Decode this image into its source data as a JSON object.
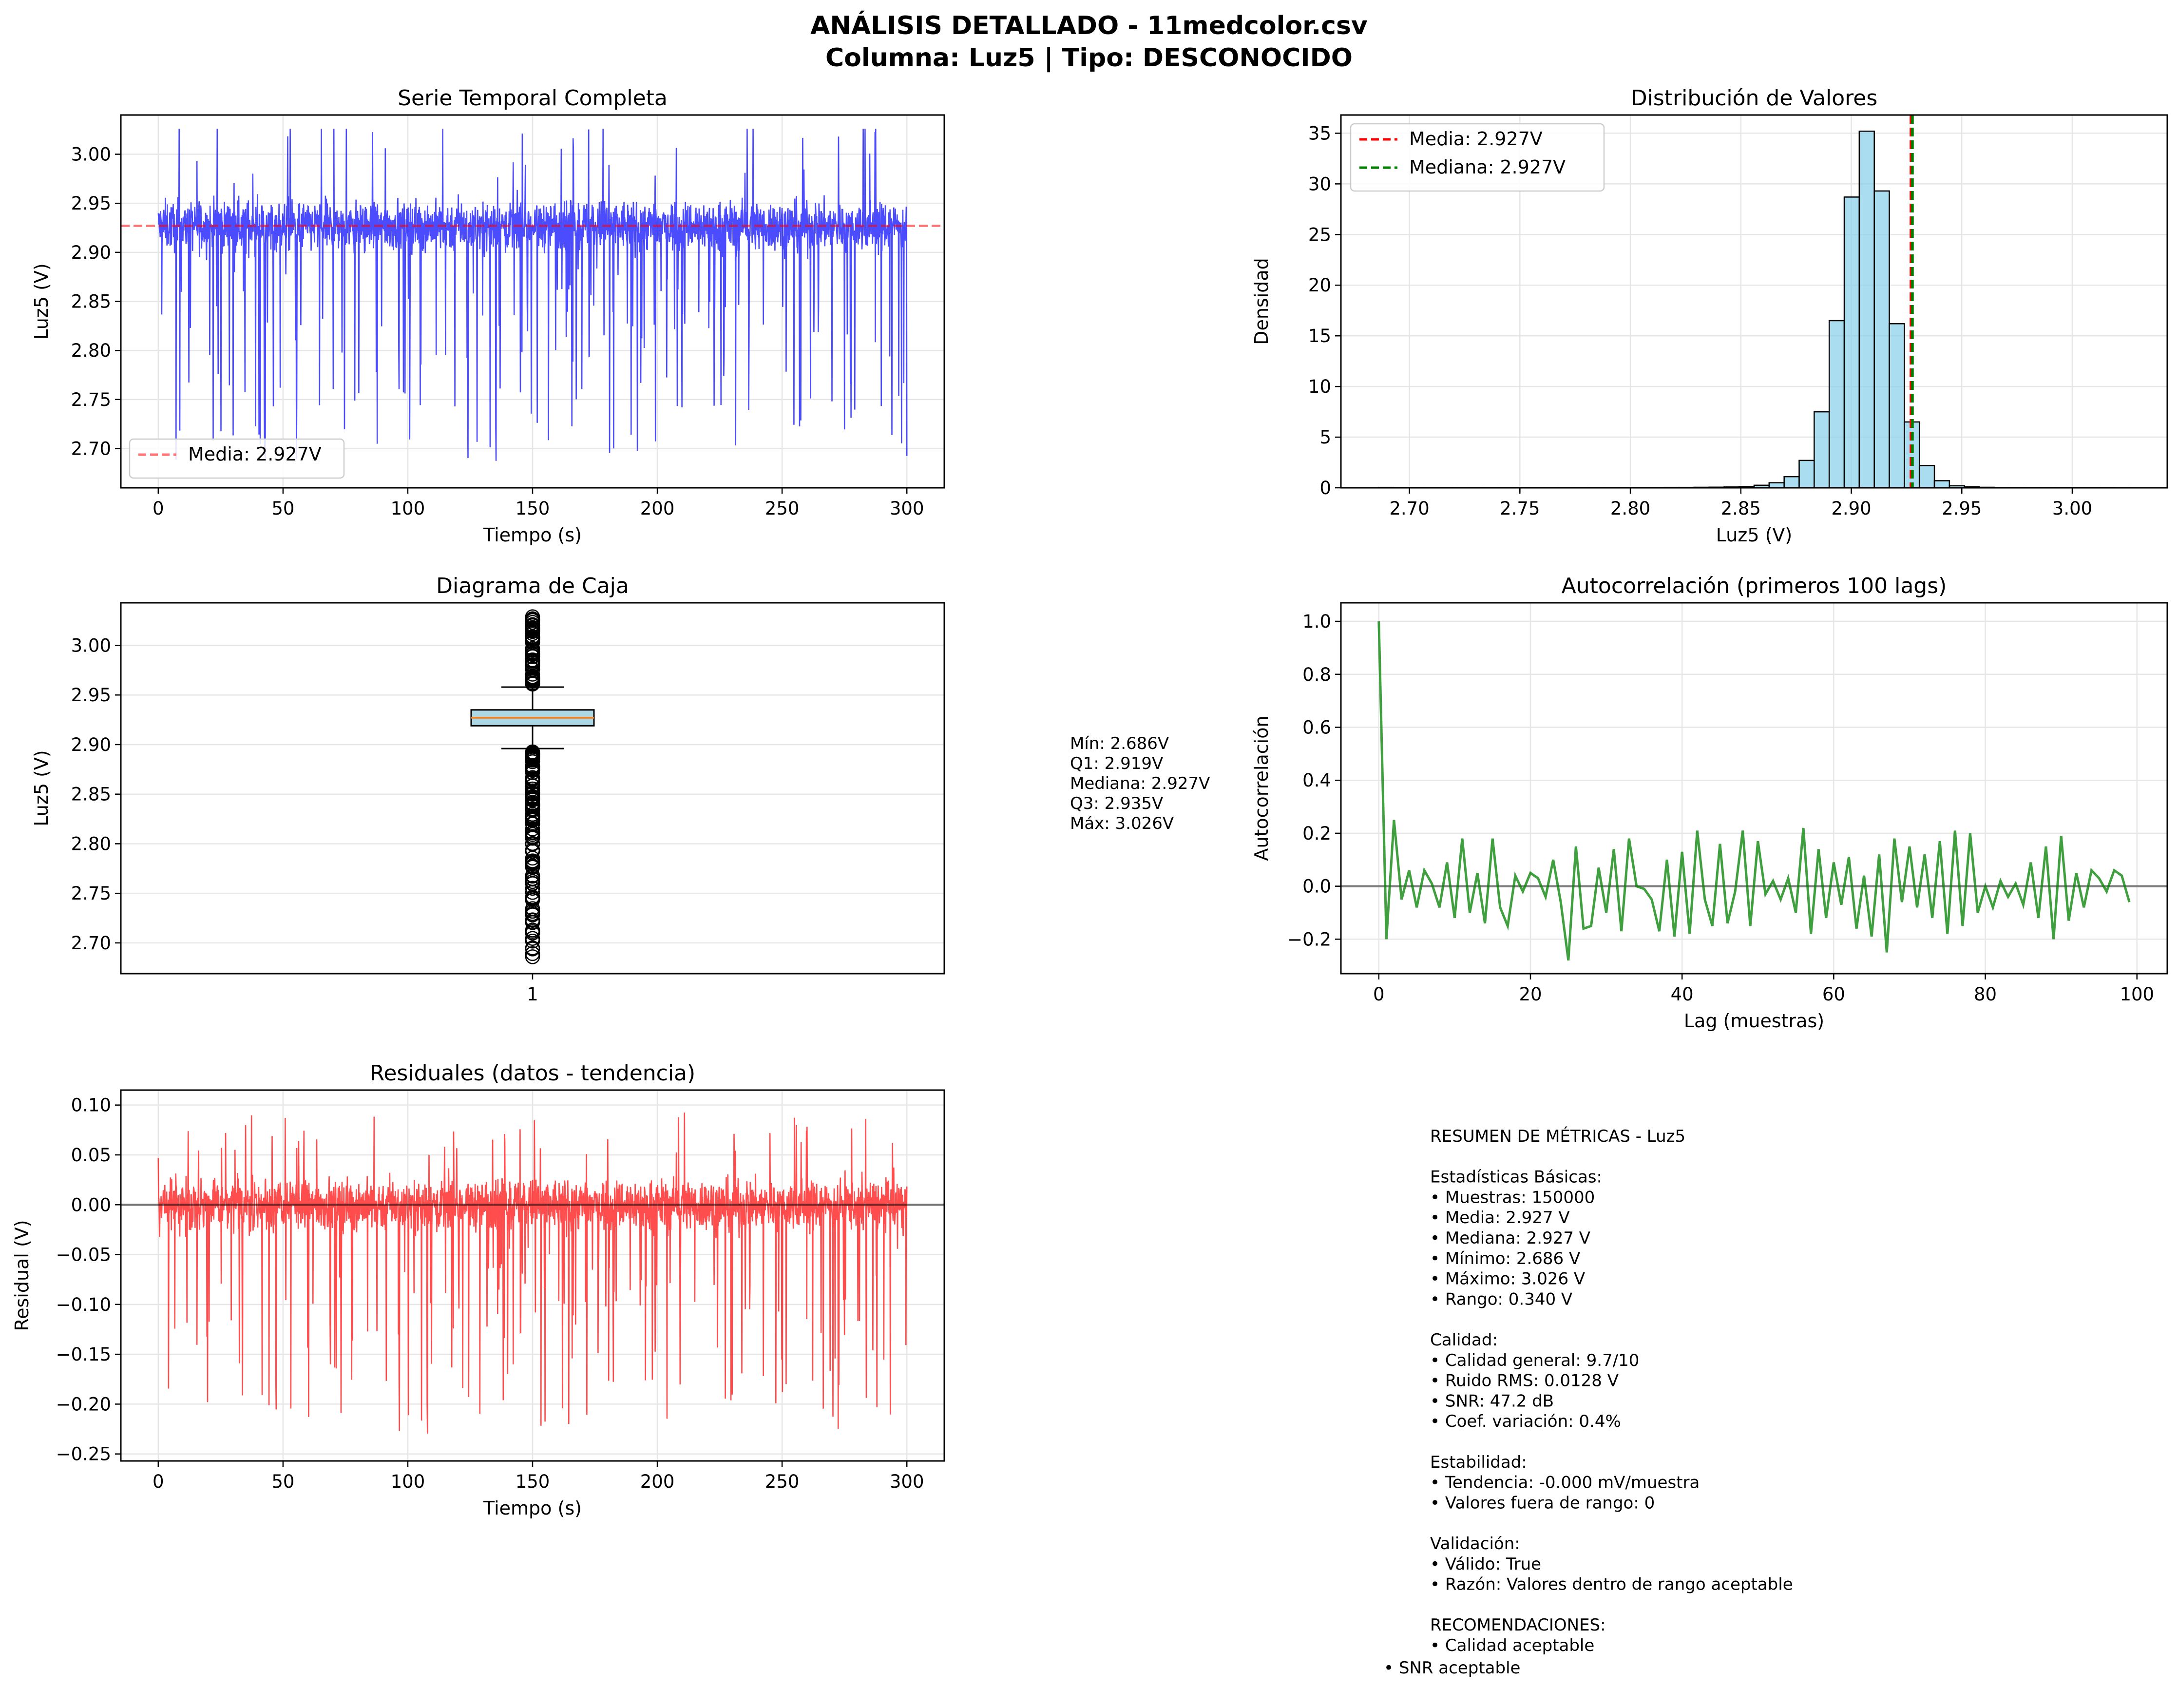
{
  "figure": {
    "title_line1": "ANÁLISIS DETALLADO - 11medcolor.csv",
    "title_line2": "Columna: Luz5 | Tipo: DESCONOCIDO"
  },
  "chart_data": [
    {
      "id": "timeseries",
      "type": "line",
      "title": "Serie Temporal Completa",
      "xlabel": "Tiempo (s)",
      "ylabel": "Luz5 (V)",
      "xlim": [
        -15,
        315
      ],
      "ylim": [
        2.66,
        3.04
      ],
      "xticks": [
        "0",
        "50",
        "100",
        "150",
        "200",
        "250",
        "300"
      ],
      "yticks": [
        "2.70",
        "2.75",
        "2.80",
        "2.85",
        "2.90",
        "2.95",
        "3.00"
      ],
      "series": [
        {
          "name": "Luz5",
          "color": "#0000ff",
          "description_of_data": "signal around 2.927 V, band 2.89–2.97 V, spikes between 2.686 and 3.026 V, 150000 samples over 0–300 s"
        },
        {
          "name": "Media: 2.927V",
          "color": "#ff0000",
          "style": "dashed",
          "y": 2.927
        }
      ],
      "legend": {
        "position": "lower-left",
        "entries": [
          "Media: 2.927V"
        ]
      },
      "grid": true
    },
    {
      "id": "histogram",
      "type": "bar",
      "title": "Distribución de Valores",
      "xlabel": "Luz5 (V)",
      "ylabel": "Densidad",
      "xlim": [
        2.669,
        3.043
      ],
      "ylim": [
        0,
        36.8
      ],
      "xticks": [
        "2.70",
        "2.75",
        "2.80",
        "2.85",
        "2.90",
        "2.95",
        "3.00"
      ],
      "yticks": [
        "0",
        "5",
        "10",
        "15",
        "20",
        "25",
        "30",
        "35"
      ],
      "bins_start": 2.686,
      "bin_width": 0.0068,
      "densities": [
        0.04,
        0.03,
        0.03,
        0.03,
        0.03,
        0.03,
        0.03,
        0.03,
        0.03,
        0.03,
        0.03,
        0.03,
        0.03,
        0.03,
        0.03,
        0.03,
        0.03,
        0.03,
        0.03,
        0.04,
        0.04,
        0.05,
        0.06,
        0.08,
        0.12,
        0.25,
        0.5,
        1.1,
        2.7,
        7.5,
        16.5,
        28.7,
        35.2,
        29.3,
        16.2,
        6.5,
        2.2,
        0.7,
        0.2,
        0.1,
        0.05,
        0.03,
        0.03,
        0.03,
        0.03,
        0.03,
        0.03,
        0.03,
        0.03,
        0.02
      ],
      "series": [
        {
          "name": "Media: 2.927V",
          "color": "#ff0000",
          "x": 2.927
        },
        {
          "name": "Mediana: 2.927V",
          "color": "#008000",
          "x": 2.927
        }
      ],
      "bar_color": "#87ceeb",
      "legend": {
        "position": "top-left",
        "entries": [
          "Media: 2.927V",
          "Mediana: 2.927V"
        ]
      },
      "grid": true
    },
    {
      "id": "boxplot",
      "type": "box",
      "title": "Diagrama de Caja",
      "xlabel": "",
      "ylabel": "Luz5 (V)",
      "category": "1",
      "ylim": [
        2.669,
        3.043
      ],
      "yticks": [
        "2.70",
        "2.75",
        "2.80",
        "2.85",
        "2.90",
        "2.95",
        "3.00"
      ],
      "min": 2.686,
      "q1": 2.919,
      "median": 2.927,
      "q3": 2.935,
      "max": 3.026,
      "whisker_low": 2.896,
      "whisker_high": 2.958,
      "box_color": "#add8e6",
      "median_color": "#ff7f0e",
      "stats_text": [
        "Mín: 2.686V",
        "Q1: 2.919V",
        "Mediana: 2.927V",
        "Q3: 2.935V",
        "Máx: 3.026V"
      ],
      "grid": true
    },
    {
      "id": "autocorrelation",
      "type": "line",
      "title": "Autocorrelación (primeros 100 lags)",
      "xlabel": "Lag (muestras)",
      "ylabel": "Autocorrelación",
      "xlim": [
        -5,
        104
      ],
      "ylim": [
        -0.33,
        1.07
      ],
      "xticks": [
        "0",
        "20",
        "40",
        "60",
        "80",
        "100"
      ],
      "yticks": [
        "−0.2",
        "0.0",
        "0.2",
        "0.4",
        "0.6",
        "0.8",
        "1.0"
      ],
      "x_start": 0,
      "values": [
        1.0,
        -0.2,
        0.25,
        -0.05,
        0.06,
        -0.08,
        0.06,
        0.01,
        -0.08,
        0.09,
        -0.12,
        0.18,
        -0.1,
        0.05,
        -0.14,
        0.18,
        -0.08,
        -0.15,
        0.04,
        -0.02,
        0.05,
        0.03,
        -0.04,
        0.1,
        -0.06,
        -0.28,
        0.15,
        -0.16,
        -0.15,
        0.07,
        -0.1,
        0.14,
        -0.17,
        0.18,
        0.0,
        -0.01,
        -0.05,
        -0.17,
        0.1,
        -0.19,
        0.13,
        -0.18,
        0.21,
        -0.05,
        -0.15,
        0.16,
        -0.14,
        -0.02,
        0.21,
        -0.15,
        0.17,
        -0.03,
        0.02,
        -0.05,
        0.03,
        -0.1,
        0.22,
        -0.18,
        0.14,
        -0.12,
        0.09,
        -0.07,
        0.11,
        -0.16,
        0.04,
        -0.19,
        0.12,
        -0.25,
        0.18,
        -0.06,
        0.15,
        -0.08,
        0.12,
        -0.12,
        0.17,
        -0.18,
        0.21,
        -0.15,
        0.2,
        -0.1,
        0.0,
        -0.08,
        0.02,
        -0.04,
        0.01,
        -0.07,
        0.09,
        -0.12,
        0.15,
        -0.2,
        0.19,
        -0.13,
        0.05,
        -0.08,
        0.06,
        0.03,
        -0.02,
        0.06,
        0.04,
        -0.06
      ],
      "series": [
        {
          "name": "Autocorrelación",
          "color": "#008000"
        },
        {
          "name": "cero",
          "color": "#000000",
          "y": 0
        }
      ],
      "grid": true
    },
    {
      "id": "residuals",
      "type": "line",
      "title": "Residuales (datos - tendencia)",
      "xlabel": "Tiempo (s)",
      "ylabel": "Residual (V)",
      "xlim": [
        -15,
        315
      ],
      "ylim": [
        -0.257,
        0.115
      ],
      "xticks": [
        "0",
        "50",
        "100",
        "150",
        "200",
        "250",
        "300"
      ],
      "yticks": [
        "−0.25",
        "−0.20",
        "−0.15",
        "−0.10",
        "−0.05",
        "0.00",
        "0.05",
        "0.10"
      ],
      "series": [
        {
          "name": "Residual",
          "color": "#ff0000",
          "description_of_data": "residual band about ±0.04 V, spikes from about -0.24 to 0.10 V over 0–300 s"
        },
        {
          "name": "cero",
          "color": "#000000",
          "y": 0
        }
      ],
      "grid": true
    }
  ],
  "summary_text": [
    "RESUMEN DE MÉTRICAS - Luz5",
    "",
    "Estadísticas Básicas:",
    "• Muestras: 150000",
    "• Media: 2.927 V",
    "• Mediana: 2.927 V",
    "• Mínimo: 2.686 V",
    "• Máximo: 3.026 V",
    "• Rango: 0.340 V",
    "",
    "Calidad:",
    "• Calidad general: 9.7/10",
    "• Ruido RMS: 0.0128 V",
    "• SNR: 47.2 dB",
    "• Coef. variación: 0.4%",
    "",
    "Estabilidad:",
    "• Tendencia: -0.000 mV/muestra",
    "• Valores fuera de rango: 0",
    "",
    "Validación:",
    "• Válido: True",
    "• Razón: Valores dentro de rango aceptable",
    "",
    "RECOMENDACIONES:",
    "• Calidad aceptable"
  ],
  "summary_last_line": "• SNR aceptable"
}
